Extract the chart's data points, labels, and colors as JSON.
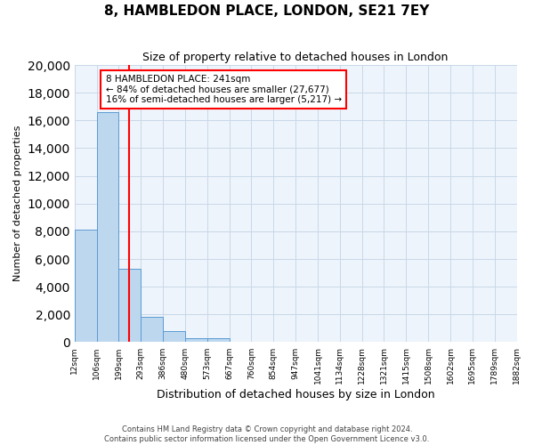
{
  "title": "8, HAMBLEDON PLACE, LONDON, SE21 7EY",
  "subtitle": "Size of property relative to detached houses in London",
  "xlabel": "Distribution of detached houses by size in London",
  "ylabel": "Number of detached properties",
  "bin_labels": [
    "12sqm",
    "106sqm",
    "199sqm",
    "293sqm",
    "386sqm",
    "480sqm",
    "573sqm",
    "667sqm",
    "760sqm",
    "854sqm",
    "947sqm",
    "1041sqm",
    "1134sqm",
    "1228sqm",
    "1321sqm",
    "1415sqm",
    "1508sqm",
    "1602sqm",
    "1695sqm",
    "1789sqm",
    "1882sqm"
  ],
  "bar_values": [
    8100,
    16600,
    5300,
    1850,
    800,
    300,
    270,
    0,
    0,
    0,
    0,
    0,
    0,
    0,
    0,
    0,
    0,
    0,
    0,
    0
  ],
  "bar_color": "#bdd7ee",
  "bar_edge_color": "#5b9bd5",
  "property_line_color": "red",
  "annotation_title": "8 HAMBLEDON PLACE: 241sqm",
  "annotation_line1": "← 84% of detached houses are smaller (27,677)",
  "annotation_line2": "16% of semi-detached houses are larger (5,217) →",
  "annotation_box_color": "white",
  "annotation_box_edge_color": "red",
  "ylim": [
    0,
    20000
  ],
  "yticks": [
    0,
    2000,
    4000,
    6000,
    8000,
    10000,
    12000,
    14000,
    16000,
    18000,
    20000
  ],
  "footer_line1": "Contains HM Land Registry data © Crown copyright and database right 2024.",
  "footer_line2": "Contains public sector information licensed under the Open Government Licence v3.0.",
  "grid_color": "#c8d8e8",
  "bg_color": "#eef4fb",
  "bin_edges": [
    12,
    106,
    199,
    293,
    386,
    480,
    573,
    667,
    760,
    854,
    947,
    1041,
    1134,
    1228,
    1321,
    1415,
    1508,
    1602,
    1695,
    1789,
    1882
  ],
  "prop_size": 241
}
